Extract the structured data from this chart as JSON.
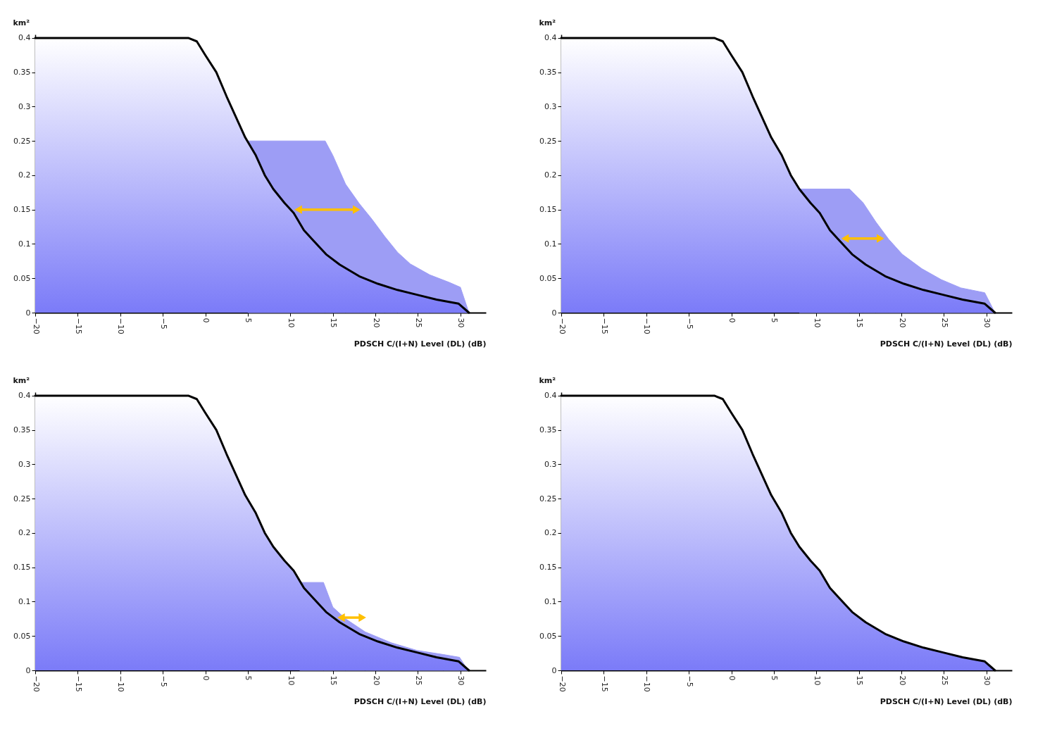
{
  "chart_data": [
    {
      "type": "area",
      "ylabel": "km²",
      "xlabel": "PDSCH C/(I+N) Level (DL) (dB)",
      "xlim": [
        -20,
        33
      ],
      "ylim": [
        0,
        0.405
      ],
      "xticks": [
        -20,
        -15,
        -10,
        -5,
        0,
        5,
        10,
        15,
        20,
        25,
        30
      ],
      "yticks": [
        0,
        0.05,
        0.1,
        0.15,
        0.2,
        0.25,
        0.3,
        0.35,
        0.4
      ],
      "grid": false,
      "series": [
        {
          "color": "#9d9df5",
          "x": [
            5,
            14.1,
            15,
            16.5,
            18.1,
            19.6,
            21.1,
            22.6,
            24.1,
            26.4,
            28.7,
            30,
            31
          ],
          "values": [
            0.25,
            0.25,
            0.229,
            0.187,
            0.159,
            0.136,
            0.111,
            0.088,
            0.071,
            0.055,
            0.044,
            0.037,
            0
          ]
        },
        {
          "color": "#7b7bf8",
          "x": [
            -20,
            -2,
            -1,
            0,
            1.3,
            2.5,
            3.6,
            4.7,
            5.9,
            7,
            8,
            9.3,
            10.4,
            11.6,
            12.7,
            14.2,
            15.8,
            18.1,
            20.3,
            22.6,
            24.9,
            27.2,
            29.8,
            31
          ],
          "values": [
            0.4,
            0.4,
            0.395,
            0.375,
            0.35,
            0.315,
            0.285,
            0.255,
            0.23,
            0.2,
            0.18,
            0.16,
            0.145,
            0.12,
            0.105,
            0.085,
            0.07,
            0.053,
            0.042,
            0.033,
            0.026,
            0.019,
            0.013,
            0
          ]
        }
      ]
    },
    {
      "type": "area",
      "ylabel": "km²",
      "xlabel": "PDSCH C/(I+N) Level (DL) (dB)",
      "xlim": [
        -20,
        33
      ],
      "ylim": [
        0,
        0.405
      ],
      "xticks": [
        -20,
        -15,
        -10,
        -5,
        0,
        5,
        10,
        15,
        20,
        25,
        30
      ],
      "yticks": [
        0,
        0.05,
        0.1,
        0.15,
        0.2,
        0.25,
        0.3,
        0.35,
        0.4
      ],
      "grid": false,
      "series": [
        {
          "color": "#9d9df5",
          "x": [
            8,
            13.9,
            15.5,
            17,
            18.5,
            20.1,
            22.4,
            24.7,
            27,
            29.8,
            31
          ],
          "values": [
            0.18,
            0.18,
            0.16,
            0.132,
            0.107,
            0.085,
            0.064,
            0.048,
            0.036,
            0.029,
            0
          ]
        },
        {
          "color": "#7b7bf8",
          "x": [
            -20,
            -2,
            -1,
            0,
            1.3,
            2.5,
            3.6,
            4.7,
            5.9,
            7,
            8,
            9.3,
            10.4,
            11.6,
            12.7,
            14.2,
            15.8,
            18.1,
            20.3,
            22.6,
            24.9,
            27.2,
            29.8,
            31
          ],
          "values": [
            0.4,
            0.4,
            0.395,
            0.375,
            0.35,
            0.315,
            0.285,
            0.255,
            0.23,
            0.2,
            0.18,
            0.16,
            0.145,
            0.12,
            0.105,
            0.085,
            0.07,
            0.053,
            0.042,
            0.033,
            0.026,
            0.019,
            0.013,
            0
          ]
        }
      ]
    },
    {
      "type": "area",
      "ylabel": "km²",
      "xlabel": "PDSCH C/(I+N) Level (DL) (dB)",
      "xlim": [
        -20,
        33
      ],
      "ylim": [
        0,
        0.405
      ],
      "xticks": [
        -20,
        -15,
        -10,
        -5,
        0,
        5,
        10,
        15,
        20,
        25,
        30
      ],
      "yticks": [
        0,
        0.05,
        0.1,
        0.15,
        0.2,
        0.25,
        0.3,
        0.35,
        0.4
      ],
      "grid": false,
      "series": [
        {
          "color": "#9d9df5",
          "x": [
            11.1,
            13.9,
            15,
            16.5,
            18.8,
            21.9,
            24.9,
            28,
            29.9,
            30.9
          ],
          "values": [
            0.128,
            0.128,
            0.092,
            0.075,
            0.056,
            0.04,
            0.029,
            0.023,
            0.019,
            0
          ]
        },
        {
          "color": "#7b7bf8",
          "x": [
            -20,
            -2,
            -1,
            0,
            1.3,
            2.5,
            3.6,
            4.7,
            5.9,
            7,
            8,
            9.3,
            10.4,
            11.6,
            12.7,
            14.2,
            15.8,
            18.1,
            20.3,
            22.6,
            24.9,
            27.2,
            29.8,
            31
          ],
          "values": [
            0.4,
            0.4,
            0.395,
            0.375,
            0.35,
            0.315,
            0.285,
            0.255,
            0.23,
            0.2,
            0.18,
            0.16,
            0.145,
            0.12,
            0.105,
            0.085,
            0.07,
            0.053,
            0.042,
            0.033,
            0.026,
            0.019,
            0.013,
            0
          ]
        }
      ]
    },
    {
      "type": "area",
      "ylabel": "km²",
      "xlabel": "PDSCH C/(I+N) Level (DL) (dB)",
      "xlim": [
        -20,
        33
      ],
      "ylim": [
        0,
        0.405
      ],
      "xticks": [
        -20,
        -15,
        -10,
        -5,
        0,
        5,
        10,
        15,
        20,
        25,
        30
      ],
      "yticks": [
        0,
        0.05,
        0.1,
        0.15,
        0.2,
        0.25,
        0.3,
        0.35,
        0.4
      ],
      "grid": false,
      "series": [
        {
          "color": "#7b7bf8",
          "x": [
            -20,
            -2,
            -1,
            0,
            1.3,
            2.5,
            3.6,
            4.7,
            5.9,
            7,
            8,
            9.3,
            10.4,
            11.6,
            12.7,
            14.2,
            15.8,
            18.1,
            20.3,
            22.6,
            24.9,
            27.2,
            29.8,
            31
          ],
          "values": [
            0.4,
            0.4,
            0.395,
            0.375,
            0.35,
            0.315,
            0.285,
            0.255,
            0.23,
            0.2,
            0.18,
            0.16,
            0.145,
            0.12,
            0.105,
            0.085,
            0.07,
            0.053,
            0.042,
            0.033,
            0.026,
            0.019,
            0.013,
            0
          ]
        }
      ]
    }
  ]
}
